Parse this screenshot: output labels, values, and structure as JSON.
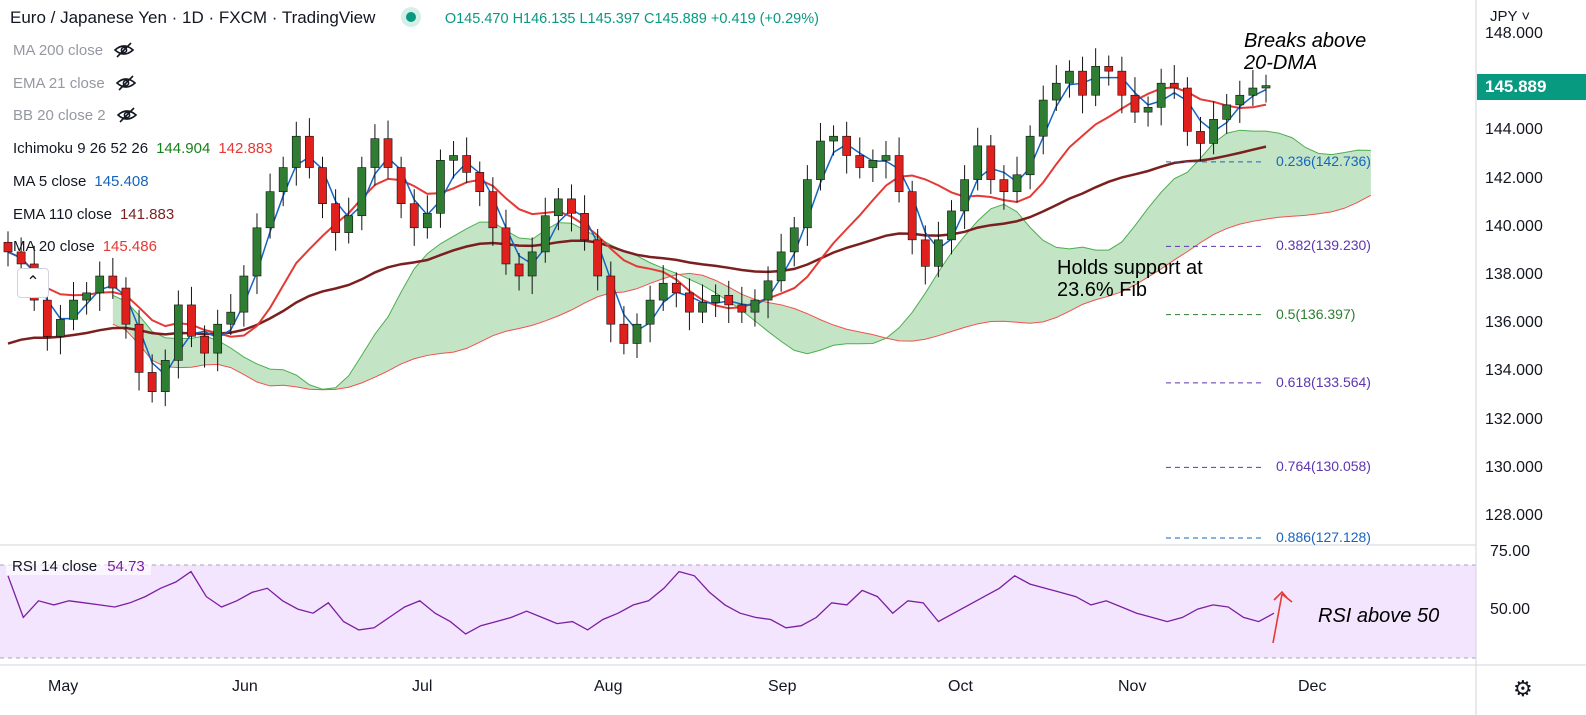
{
  "header": {
    "title": "Euro / Japanese Yen · 1D · FXCM · TradingView",
    "ohlc": "O145.470 H146.135 L145.397 C145.889 +0.419 (+0.29%)"
  },
  "indicators": [
    {
      "label": "MA 200 close",
      "value": "",
      "color": "#9598a1",
      "hidden": true
    },
    {
      "label": "EMA 21 close",
      "value": "",
      "color": "#9598a1",
      "hidden": true
    },
    {
      "label": "BB 20 close 2",
      "value": "",
      "color": "#9598a1",
      "hidden": true
    },
    {
      "label": "Ichimoku 9 26 52 26",
      "value": "144.904",
      "value2": "142.883",
      "color": "#1b7f1b",
      "color2": "#e53935",
      "hidden": false
    },
    {
      "label": "MA 5 close",
      "value": "145.408",
      "color": "#1565c0",
      "hidden": false
    },
    {
      "label": "EMA 110 close",
      "value": "141.883",
      "color": "#7b1f1f",
      "hidden": false
    },
    {
      "label": "MA 20 close",
      "value": "145.486",
      "color": "#e53935",
      "hidden": false
    }
  ],
  "currency": "JPY",
  "last_price": "145.889",
  "annotations": {
    "breaks": [
      "Breaks above",
      "20-DMA"
    ],
    "holds": [
      "Holds support at",
      "23.6% Fib"
    ],
    "rsi": "RSI above 50"
  },
  "rsi_legend": {
    "label": "RSI 14 close",
    "value": "54.73"
  },
  "rsi_axis": [
    "75.00",
    "50.00"
  ],
  "colors": {
    "up": "#2e7d32",
    "down": "#e0201c",
    "accent": "#089981",
    "fib": "#1565c0",
    "fib_purple": "#5e35b1",
    "rsi": "#7b1fa2"
  },
  "chart_data": {
    "type": "candlestick",
    "title": "Euro / Japanese Yen · 1D · FXCM · TradingView",
    "price_range": [
      127.3,
      148.6
    ],
    "y_ticks": [
      "148.000",
      "146.000",
      "144.000",
      "142.000",
      "140.000",
      "138.000",
      "136.000",
      "134.000",
      "132.000",
      "130.000",
      "128.000"
    ],
    "x_ticks": [
      "May",
      "Jun",
      "Jul",
      "Aug",
      "Sep",
      "Oct",
      "Nov",
      "Dec"
    ],
    "close_path": [
      139.0,
      138.5,
      137.0,
      135.5,
      136.2,
      137.0,
      137.3,
      138.0,
      137.5,
      136.0,
      134.0,
      133.2,
      134.5,
      136.8,
      135.5,
      134.8,
      136.0,
      136.5,
      138.0,
      140.0,
      141.5,
      142.5,
      143.8,
      142.5,
      141.0,
      139.8,
      140.5,
      142.5,
      143.7,
      142.5,
      141.0,
      140.0,
      140.6,
      142.8,
      143.0,
      142.3,
      141.5,
      140.0,
      138.5,
      138.0,
      139.0,
      140.5,
      141.2,
      140.6,
      139.5,
      138.0,
      136.0,
      135.2,
      136.0,
      137.0,
      137.7,
      137.3,
      136.5,
      136.9,
      137.2,
      136.8,
      136.5,
      137.0,
      137.8,
      139.0,
      140.0,
      142.0,
      143.6,
      143.8,
      143.0,
      142.5,
      142.8,
      143.0,
      141.5,
      139.5,
      138.4,
      139.5,
      140.7,
      142.0,
      143.4,
      142.0,
      141.5,
      142.2,
      143.8,
      145.3,
      146.0,
      146.5,
      145.5,
      146.7,
      146.5,
      145.5,
      144.8,
      145.0,
      146.0,
      145.8,
      144.0,
      143.5,
      144.5,
      145.1,
      145.5,
      145.8,
      145.9
    ],
    "fib_levels": [
      {
        "label": "0.236(142.736)",
        "value": 142.736
      },
      {
        "label": "0.382(139.230)",
        "value": 139.23
      },
      {
        "label": "0.5(136.397)",
        "value": 136.397
      },
      {
        "label": "0.618(133.564)",
        "value": 133.564
      },
      {
        "label": "0.764(130.058)",
        "value": 130.058
      },
      {
        "label": "0.886(127.128)",
        "value": 127.128
      }
    ],
    "rsi_series": [
      70,
      50,
      58,
      56,
      58,
      57,
      56,
      55,
      57,
      60,
      64,
      67,
      72,
      60,
      55,
      58,
      62,
      64,
      58,
      54,
      52,
      57,
      48,
      44,
      45,
      50,
      55,
      58,
      52,
      48,
      42,
      46,
      48,
      50,
      53,
      50,
      47,
      48,
      44,
      49,
      52,
      56,
      58,
      64,
      72,
      70,
      62,
      56,
      52,
      50,
      49,
      45,
      46,
      50,
      57,
      56,
      63,
      60,
      52,
      58,
      57,
      48,
      52,
      56,
      60,
      64,
      70,
      66,
      64,
      62,
      60,
      56,
      58,
      55,
      52,
      50,
      48,
      50,
      54,
      56,
      55,
      50,
      48,
      52
    ],
    "rsi_range": [
      30,
      80
    ]
  }
}
